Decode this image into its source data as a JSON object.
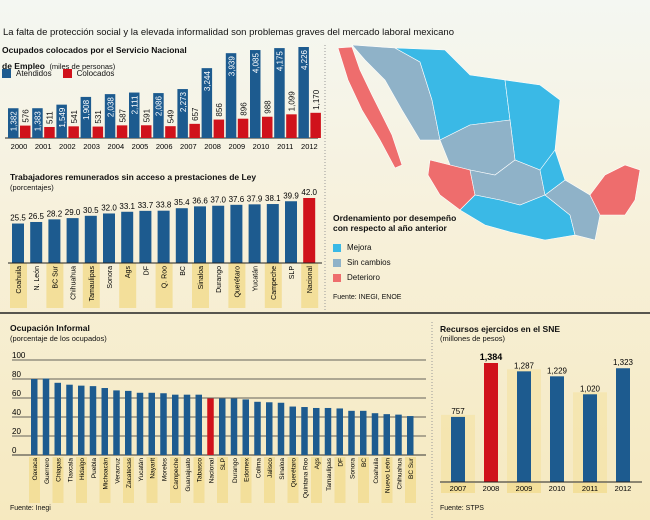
{
  "title": "La falta de protección social y la elevada informalidad son problemas graves del mercado laboral mexicano",
  "map": {
    "legend_title_1": "Ordenamiento por desempeño",
    "legend_title_2": "con respecto al año anterior",
    "items": [
      {
        "label": "Mejora",
        "color": "#3ab9e6"
      },
      {
        "label": "Sin cambios",
        "color": "#8fb2c8"
      },
      {
        "label": "Deterioro",
        "color": "#ee6d6d"
      }
    ],
    "source": "Fuente: INEGI, ENOE"
  },
  "colors": {
    "blue": "#1d5b8f",
    "red": "#d0121b",
    "band": "#f3df9a"
  },
  "chart_data": [
    {
      "type": "bar",
      "title": "Ocupados colocados por el Servicio Nacional",
      "title2": "de Empleo",
      "unit": "(miles de personas)",
      "categories": [
        "2000",
        "2001",
        "2002",
        "2003",
        "2004",
        "2005",
        "2006",
        "2007",
        "2008",
        "2009",
        "2010",
        "2011",
        "2012"
      ],
      "series": [
        {
          "name": "Atendidos",
          "values": [
            1382,
            1383,
            1549,
            1908,
            2038,
            2111,
            2086,
            2273,
            3244,
            3939,
            4085,
            4175,
            4226
          ],
          "labels": [
            "1,382",
            "1,383",
            "1,549",
            "1,908",
            "2,038",
            "2,111",
            "2,086",
            "2,273",
            "3,244",
            "3,939",
            "4,085",
            "4,175",
            "4,226"
          ]
        },
        {
          "name": "Colocados",
          "values": [
            576,
            511,
            541,
            531,
            587,
            591,
            549,
            657,
            856,
            896,
            988,
            1099,
            1170
          ],
          "labels": [
            "576",
            "511",
            "541",
            "531",
            "587",
            "591",
            "549",
            "657",
            "856",
            "896",
            "988",
            "1,099",
            "1,170"
          ]
        }
      ]
    },
    {
      "type": "bar",
      "title": "Trabajadores remunerados sin acceso a prestaciones de Ley",
      "unit": "(porcentajes)",
      "categories": [
        "Coahuila",
        "N. León",
        "BC Sur",
        "Chihuahua",
        "Tamaulipas",
        "Sonora",
        "Ags",
        "DF",
        "Q. Roo",
        "BC",
        "Sinaloa",
        "Durango",
        "Querétaro",
        "Yucatán",
        "Campeche",
        "SLP",
        "Nacional"
      ],
      "values": [
        25.5,
        26.5,
        28.2,
        29.0,
        30.5,
        32.0,
        33.1,
        33.7,
        33.8,
        35.4,
        36.6,
        37.0,
        37.6,
        37.9,
        38.1,
        39.9,
        42.0
      ],
      "highlight": "Nacional"
    },
    {
      "type": "bar",
      "title": "Ocupación Informal",
      "unit": "(porcentaje de los ocupados)",
      "ylim": [
        0,
        100
      ],
      "yticks": [
        "0",
        "20",
        "40",
        "60",
        "80",
        "100"
      ],
      "grid": true,
      "categories": [
        "Oaxaca",
        "Guerrero",
        "Chiapas",
        "Tlaxcala",
        "Hidalgo",
        "Puebla",
        "Michoacán",
        "Veracruz",
        "Zacatecas",
        "Yucatán",
        "Nayarit",
        "Morelos",
        "Campeche",
        "Guanajuato",
        "Tabasco",
        "Nacional",
        "SLP",
        "Durango",
        "Edomex",
        "Colima",
        "Jalisco",
        "Sinaloa",
        "Querétaro",
        "Quintana Roo",
        "Ags",
        "Tamaulipas",
        "DF",
        "Sonora",
        "BC",
        "Coahuila",
        "Nuevo León",
        "Chihuahua",
        "BC Sur"
      ],
      "values": [
        80,
        80.5,
        76,
        74,
        73,
        72.5,
        70.5,
        68,
        67.5,
        65.5,
        65.5,
        65,
        63.5,
        63.5,
        63.5,
        59.5,
        59.5,
        59.5,
        58.5,
        56,
        55.5,
        55,
        51,
        50.5,
        49.5,
        49.5,
        49,
        46.5,
        46.5,
        44,
        43,
        42.5,
        41
      ],
      "highlight": "Nacional",
      "source": "Fuente: Inegi"
    },
    {
      "type": "bar",
      "title": "Recursos ejercidos en el SNE",
      "unit": "(millones de pesos)",
      "categories": [
        "2007",
        "2008",
        "2009",
        "2010",
        "2011",
        "2012"
      ],
      "values": [
        757,
        1384,
        1287,
        1229,
        1020,
        1323
      ],
      "labels": [
        "757",
        "1,384",
        "1,287",
        "1,229",
        "1,020",
        "1,323"
      ],
      "highlight": "2008",
      "source": "Fuente: STPS"
    }
  ]
}
